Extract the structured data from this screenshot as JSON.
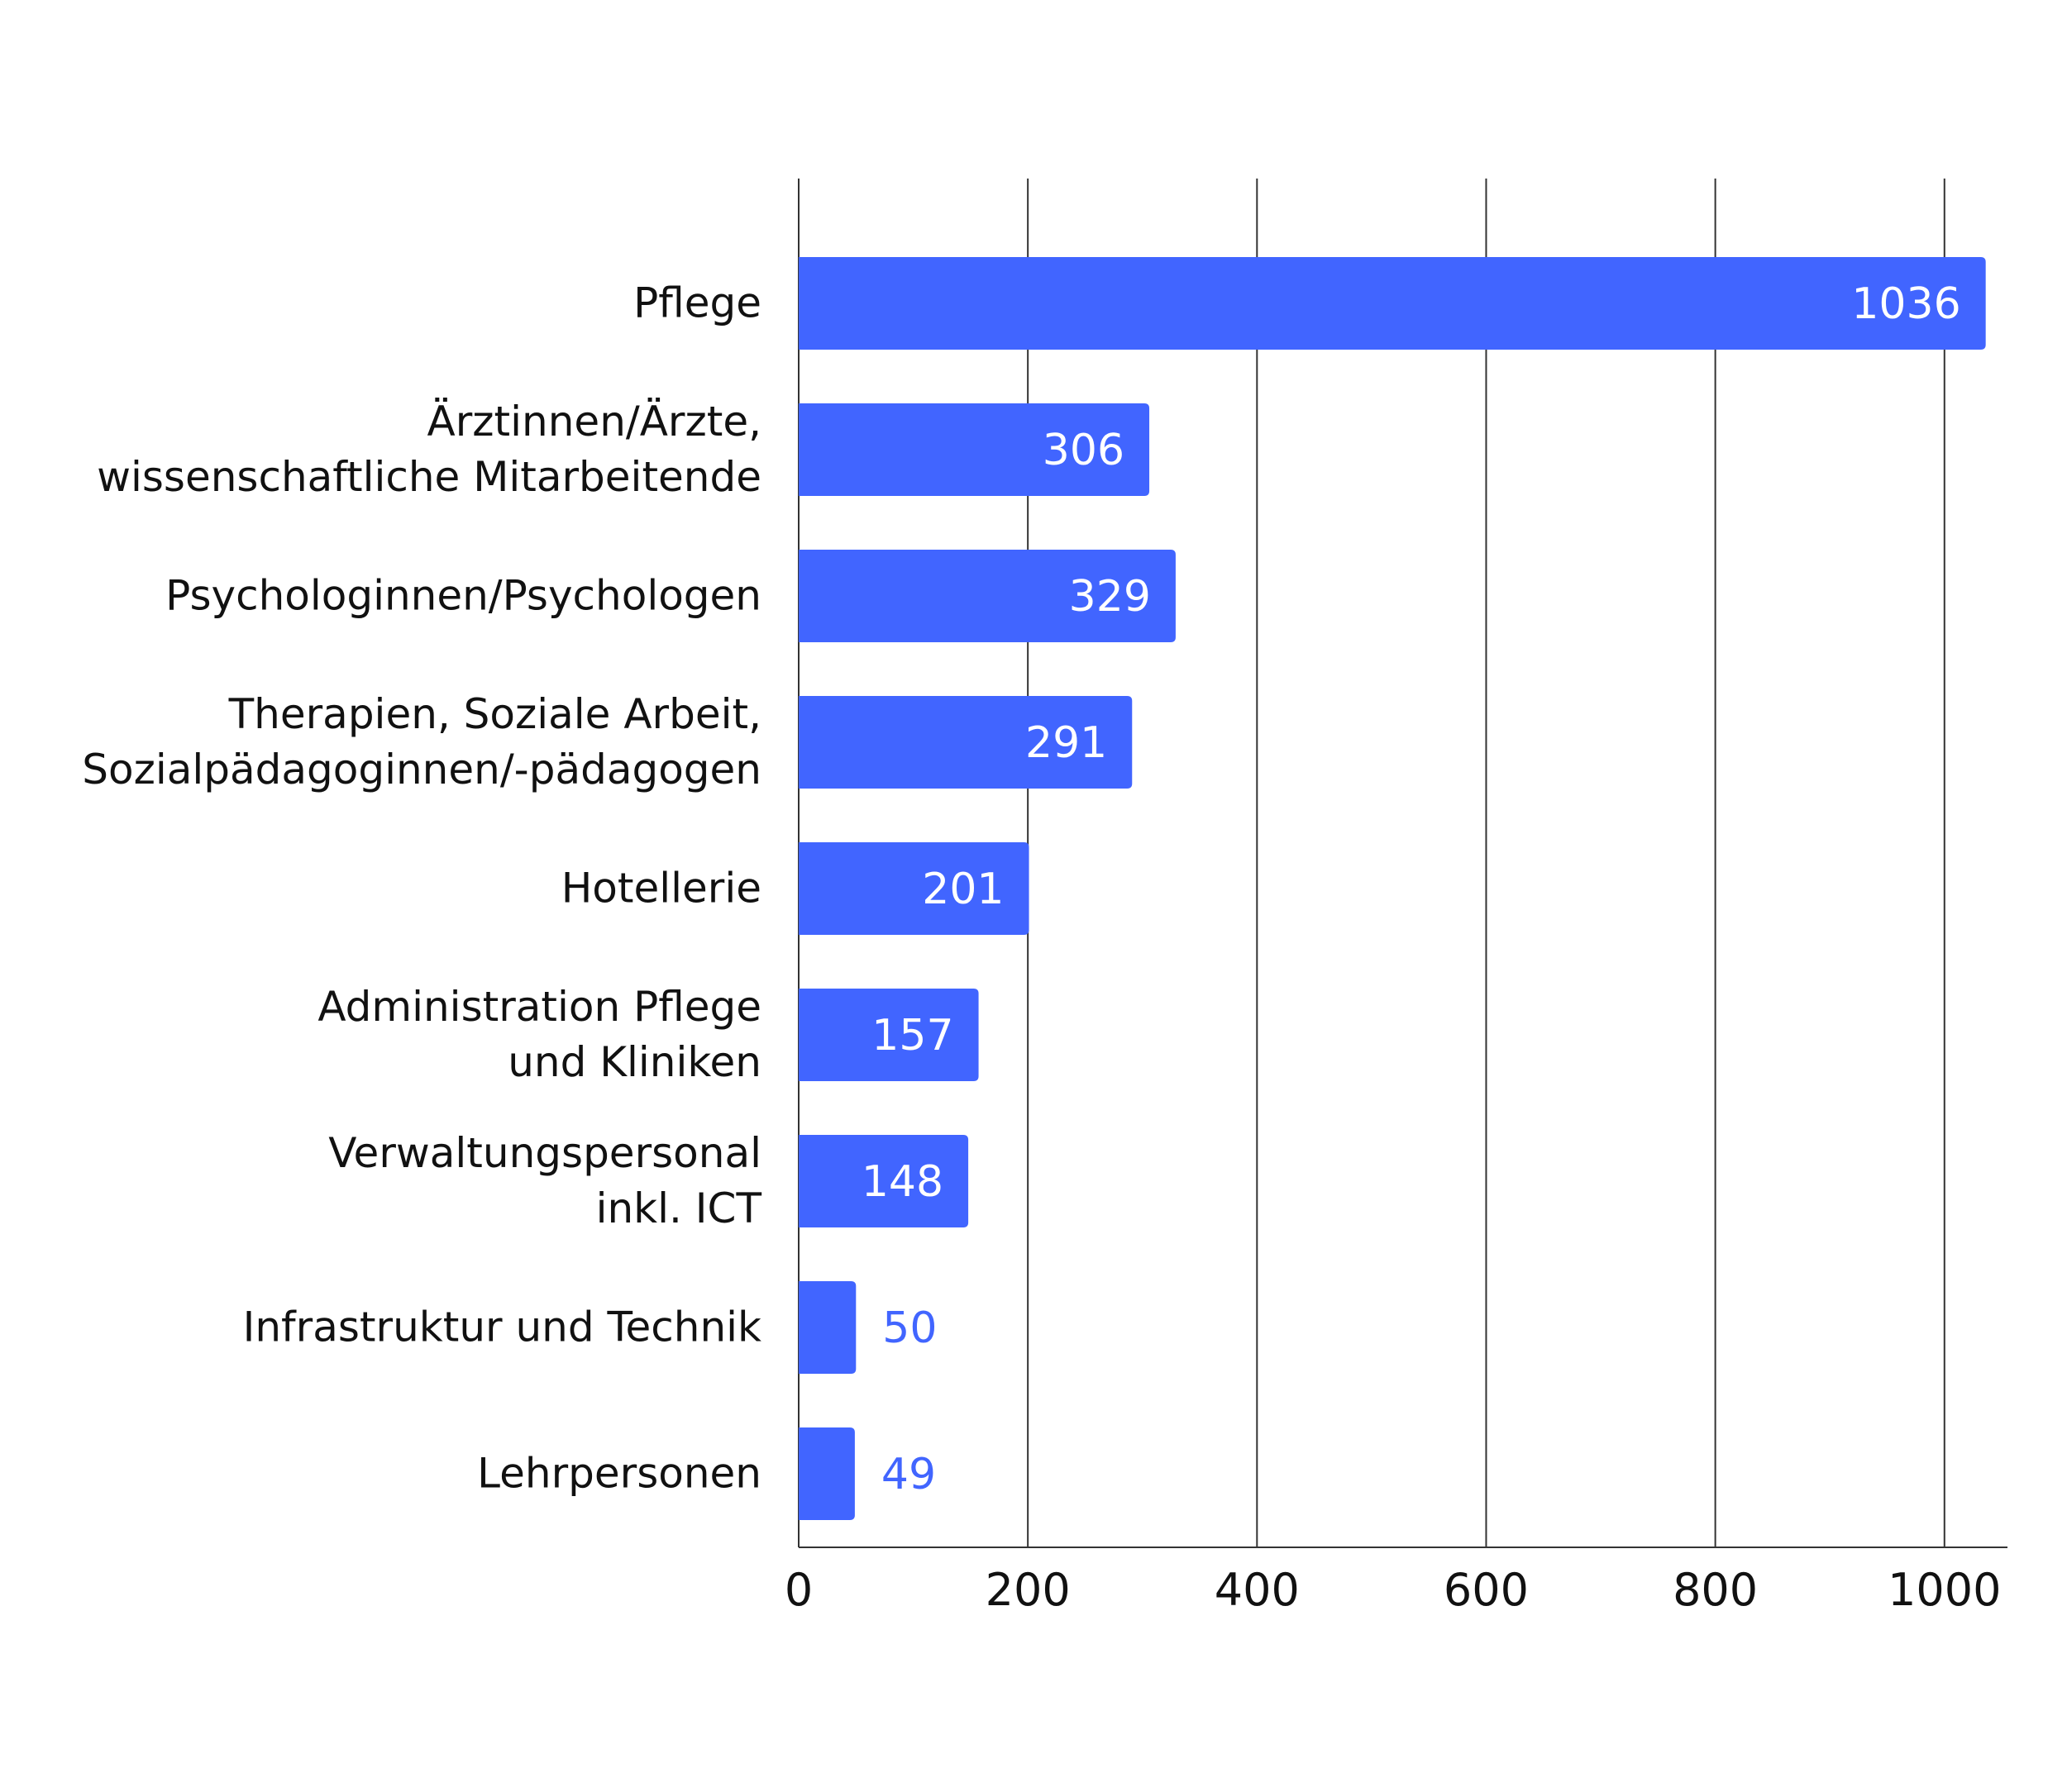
{
  "chart_data": {
    "type": "bar",
    "orientation": "horizontal",
    "categories": [
      "Pflege",
      "Ärztinnen/Ärzte,\nwissenschaftliche Mitarbeitende",
      "Psychologinnen/Psychologen",
      "Therapien, Soziale Arbeit,\nSozialpädagoginnen/-pädagogen",
      "Hotellerie",
      "Administration Pflege\nund Kliniken",
      "Verwaltungspersonal\ninkl. ICT",
      "Infrastruktur und Technik",
      "Lehrpersonen"
    ],
    "values": [
      1036,
      306,
      329,
      291,
      201,
      157,
      148,
      50,
      49
    ],
    "color": "#4165ff",
    "xlim": [
      0,
      1055
    ],
    "xticks": [
      0,
      200,
      400,
      600,
      800,
      1000
    ],
    "grid": true
  }
}
